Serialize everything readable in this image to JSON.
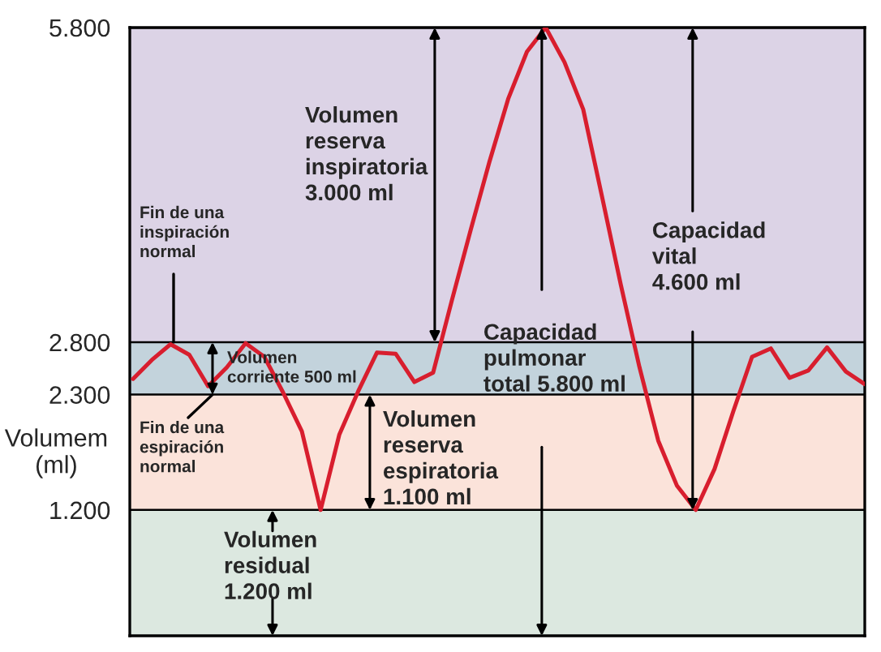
{
  "chart_data": {
    "type": "line",
    "ylabel": "Volumem\n(ml)",
    "categories": [
      null,
      null,
      null,
      null,
      null,
      null,
      null,
      null,
      null,
      null,
      null,
      null,
      null,
      null,
      null,
      null,
      null,
      null,
      null,
      null,
      null,
      null,
      null,
      null,
      null,
      null,
      null,
      null,
      null,
      null,
      null,
      null,
      null,
      null,
      null,
      null,
      null,
      null,
      null,
      null
    ],
    "series": [
      {
        "color": "#d81e2e",
        "values": [
          2450,
          2630,
          2780,
          2680,
          2380,
          2560,
          2790,
          2660,
          2320,
          1950,
          1200,
          1920,
          2330,
          2700,
          2690,
          2420,
          2510,
          3200,
          3870,
          4520,
          5120,
          5570,
          5800,
          5470,
          5020,
          4190,
          3350,
          2560,
          1860,
          1430,
          1200,
          1590,
          2140,
          2660,
          2740,
          2460,
          2530,
          2750,
          2520,
          2400
        ]
      }
    ],
    "ylim": [
      0,
      5800
    ],
    "yticks": [
      {
        "value": 1200,
        "label": "1.200"
      },
      {
        "value": 2300,
        "label": "2.300"
      },
      {
        "value": 2800,
        "label": "2.800"
      },
      {
        "value": 5800,
        "label": "5.800"
      }
    ],
    "tick_labels": "y",
    "grid": "y",
    "bands": [
      {
        "axis": "y",
        "from": 0,
        "to": 1200,
        "color": "#dce8e0"
      },
      {
        "axis": "y",
        "from": 1200,
        "to": 2300,
        "color": "#fbe3da"
      },
      {
        "axis": "y",
        "from": 2300,
        "to": 2800,
        "color": "#c3d3dc"
      },
      {
        "axis": "y",
        "from": 2800,
        "to": 5800,
        "color": "#dcd3e6"
      }
    ],
    "annotations": [
      "Volumen\nreserva\ninspiratoria\n3.000 ml",
      "Fin de una\ninspiración\nnormal",
      "Volumen\ncorriente 500 ml",
      "Fin de una\nespiración\nnormal",
      "Volumen\nreserva\nespiratoria\n1.100 ml",
      "Volumen\nresidual\n1.200 ml",
      "Capacidad\npulmonar\ntotal 5.800 ml",
      "Capacidad\nvital\n4.600 ml"
    ]
  }
}
